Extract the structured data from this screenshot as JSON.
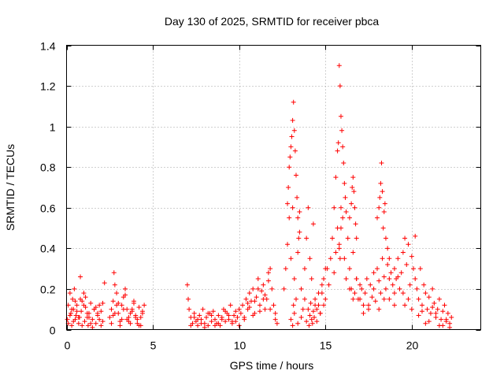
{
  "chart_data": {
    "type": "scatter",
    "title": "Day 130 of 2025, SRMTID for receiver pbca",
    "xlabel": "GPS time / hours",
    "ylabel": "SRMTID / TECUs",
    "xlim": [
      0,
      24
    ],
    "ylim": [
      0,
      1.4
    ],
    "xticks": [
      0,
      5,
      10,
      15,
      20
    ],
    "yticks": [
      0,
      0.2,
      0.4,
      0.6,
      0.8,
      1,
      1.2,
      1.4
    ],
    "ytick_labels": [
      "0",
      "0.2",
      "0.4",
      "0.6",
      "0.8",
      "1",
      "1.2",
      "1.4"
    ],
    "grid": true,
    "marker": "+",
    "color": "#ff0000",
    "series": [
      {
        "name": "pbca",
        "x": [
          0.05,
          0.1,
          0.2,
          0.25,
          0.3,
          0.35,
          0.4,
          0.45,
          0.5,
          0.55,
          0.6,
          0.7,
          0.75,
          0.8,
          0.85,
          0.9,
          1.0,
          1.05,
          1.1,
          1.2,
          1.25,
          1.3,
          1.4,
          1.5,
          1.6,
          1.7,
          1.8,
          1.9,
          2.0,
          2.1,
          2.2,
          0.1,
          0.3,
          0.5,
          0.7,
          0.9,
          1.1,
          1.3,
          1.5,
          1.7,
          1.9,
          2.1,
          0.2,
          0.4,
          0.6,
          0.8,
          1.0,
          1.2,
          1.4,
          1.6,
          1.8,
          2.0,
          2.5,
          2.6,
          2.7,
          2.75,
          2.8,
          2.9,
          3.0,
          3.1,
          3.2,
          3.3,
          3.4,
          3.5,
          3.6,
          3.7,
          3.8,
          3.9,
          4.0,
          4.1,
          4.2,
          4.3,
          4.4,
          4.5,
          2.6,
          2.8,
          3.0,
          3.2,
          3.4,
          3.6,
          3.8,
          4.0,
          4.2,
          4.4,
          2.7,
          2.9,
          3.1,
          3.3,
          3.5,
          3.7,
          3.9,
          4.1,
          4.3,
          7.0,
          7.05,
          7.1,
          7.2,
          7.3,
          7.4,
          7.5,
          7.6,
          7.7,
          7.8,
          7.9,
          8.0,
          8.1,
          8.2,
          8.3,
          8.4,
          8.5,
          8.6,
          8.7,
          8.8,
          8.9,
          9.0,
          9.1,
          9.2,
          9.3,
          9.4,
          9.5,
          9.6,
          9.7,
          9.8,
          9.9,
          10.0,
          7.2,
          7.6,
          8.0,
          8.4,
          8.8,
          9.2,
          9.6,
          10.0,
          7.4,
          7.8,
          8.2,
          8.6,
          9.0,
          9.4,
          9.8,
          10.1,
          10.2,
          10.3,
          10.4,
          10.5,
          10.6,
          10.7,
          10.8,
          10.9,
          11.0,
          11.1,
          11.2,
          11.3,
          11.4,
          11.5,
          11.6,
          11.7,
          11.8,
          11.9,
          12.0,
          12.1,
          12.2,
          10.3,
          10.6,
          10.9,
          11.2,
          11.5,
          11.8,
          12.1,
          10.5,
          10.8,
          11.1,
          11.4,
          11.7,
          12.0,
          12.6,
          12.7,
          12.8,
          12.9,
          13.0,
          13.1,
          13.2,
          13.3,
          13.4,
          13.5,
          13.6,
          13.7,
          13.8,
          13.9,
          14.0,
          14.1,
          14.2,
          14.3,
          14.4,
          14.5,
          14.6,
          14.7,
          14.8,
          14.9,
          15.0,
          12.8,
          12.85,
          12.9,
          12.95,
          13.0,
          13.05,
          13.1,
          13.15,
          13.2,
          13.25,
          13.3,
          13.35,
          13.4,
          13.45,
          13.5,
          13.0,
          13.1,
          13.15,
          13.2,
          13.4,
          13.6,
          13.8,
          13.9,
          14.0,
          14.05,
          14.1,
          14.15,
          14.2,
          14.25,
          14.3,
          14.35,
          14.4,
          14.5,
          14.6,
          14.7,
          14.8,
          14.9,
          15.0,
          15.1,
          15.2,
          15.3,
          15.4,
          15.5,
          15.6,
          15.7,
          15.8,
          15.9,
          16.0,
          16.1,
          16.2,
          16.3,
          16.4,
          16.5,
          16.6,
          16.7,
          16.8,
          16.9,
          17.0,
          15.5,
          15.6,
          15.7,
          15.75,
          15.8,
          15.85,
          15.9,
          15.95,
          16.0,
          16.05,
          16.1,
          16.15,
          16.2,
          15.8,
          15.85,
          15.9,
          16.4,
          16.5,
          16.55,
          16.6,
          16.65,
          16.7,
          16.75,
          16.8,
          16.4,
          16.6,
          16.8,
          17.0,
          17.1,
          17.2,
          17.3,
          17.4,
          17.5,
          17.6,
          17.7,
          17.8,
          17.9,
          18.0,
          18.1,
          18.2,
          18.3,
          18.4,
          18.5,
          18.6,
          18.7,
          18.8,
          18.9,
          19.0,
          17.2,
          17.5,
          17.8,
          18.1,
          18.4,
          18.7,
          19.0,
          18.0,
          18.1,
          18.15,
          18.2,
          18.25,
          18.3,
          18.35,
          18.4,
          18.45,
          18.5,
          18.6,
          18.7,
          19.0,
          19.1,
          19.2,
          19.3,
          19.4,
          19.5,
          19.6,
          19.7,
          19.8,
          19.9,
          20.0,
          20.1,
          20.2,
          19.5,
          19.8,
          20.0,
          19.2,
          19.6,
          20.2,
          20.3,
          20.4,
          20.5,
          20.6,
          20.7,
          20.8,
          20.9,
          21.0,
          21.1,
          21.2,
          21.3,
          21.4,
          21.5,
          21.6,
          21.7,
          21.8,
          21.9,
          22.0,
          22.1,
          22.2,
          22.3,
          20.4,
          20.8,
          21.2,
          21.6,
          22.0,
          20.6,
          21.0,
          21.4,
          21.8,
          22.2
        ],
        "y": [
          0.05,
          0.12,
          0.18,
          0.08,
          0.02,
          0.15,
          0.1,
          0.2,
          0.05,
          0.07,
          0.12,
          0.03,
          0.06,
          0.26,
          0.09,
          0.14,
          0.18,
          0.04,
          0.11,
          0.08,
          0.02,
          0.06,
          0.13,
          0.05,
          0.1,
          0.03,
          0.07,
          0.12,
          0.09,
          0.04,
          0.23,
          0.03,
          0.1,
          0.14,
          0.06,
          0.02,
          0.16,
          0.08,
          0.01,
          0.11,
          0.05,
          0.13,
          0.07,
          0.04,
          0.09,
          0.15,
          0.12,
          0.06,
          0.03,
          0.1,
          0.08,
          0.02,
          0.06,
          0.1,
          0.14,
          0.28,
          0.22,
          0.18,
          0.08,
          0.04,
          0.12,
          0.16,
          0.2,
          0.1,
          0.06,
          0.03,
          0.09,
          0.13,
          0.07,
          0.05,
          0.11,
          0.02,
          0.08,
          0.12,
          0.03,
          0.08,
          0.13,
          0.05,
          0.17,
          0.04,
          0.1,
          0.06,
          0.02,
          0.09,
          0.07,
          0.12,
          0.02,
          0.1,
          0.05,
          0.08,
          0.14,
          0.03,
          0.06,
          0.22,
          0.15,
          0.1,
          0.06,
          0.03,
          0.08,
          0.04,
          0.02,
          0.07,
          0.05,
          0.1,
          0.03,
          0.06,
          0.02,
          0.08,
          0.04,
          0.09,
          0.05,
          0.03,
          0.07,
          0.02,
          0.06,
          0.1,
          0.04,
          0.08,
          0.05,
          0.12,
          0.03,
          0.07,
          0.09,
          0.06,
          0.1,
          0.02,
          0.05,
          0.01,
          0.07,
          0.03,
          0.09,
          0.04,
          0.02,
          0.06,
          0.03,
          0.08,
          0.02,
          0.05,
          0.07,
          0.04,
          0.08,
          0.12,
          0.05,
          0.15,
          0.1,
          0.18,
          0.14,
          0.2,
          0.08,
          0.16,
          0.25,
          0.12,
          0.19,
          0.22,
          0.1,
          0.15,
          0.28,
          0.3,
          0.2,
          0.12,
          0.08,
          0.03,
          0.06,
          0.11,
          0.14,
          0.09,
          0.17,
          0.1,
          0.05,
          0.13,
          0.07,
          0.2,
          0.15,
          0.24,
          0.12,
          0.2,
          0.3,
          0.42,
          0.55,
          0.35,
          0.6,
          0.25,
          0.15,
          0.38,
          0.48,
          0.2,
          0.1,
          0.3,
          0.45,
          0.6,
          0.35,
          0.25,
          0.52,
          0.15,
          0.1,
          0.18,
          0.08,
          0.22,
          0.12,
          0.3,
          0.62,
          0.7,
          0.8,
          0.85,
          0.9,
          0.95,
          1.03,
          1.12,
          0.98,
          0.88,
          0.76,
          0.65,
          0.55,
          0.45,
          0.58,
          0.05,
          0.02,
          0.12,
          0.08,
          0.03,
          0.06,
          0.15,
          0.04,
          0.1,
          0.02,
          0.07,
          0.13,
          0.05,
          0.03,
          0.09,
          0.06,
          0.12,
          0.04,
          0.12,
          0.08,
          0.18,
          0.25,
          0.15,
          0.3,
          0.22,
          0.35,
          0.45,
          0.28,
          0.38,
          0.5,
          0.42,
          0.6,
          0.55,
          0.35,
          0.25,
          0.45,
          0.3,
          0.2,
          0.38,
          0.18,
          0.25,
          0.15,
          0.22,
          0.6,
          0.75,
          0.88,
          0.92,
          1.3,
          1.2,
          1.05,
          0.98,
          0.9,
          0.82,
          0.72,
          0.65,
          0.58,
          0.4,
          0.35,
          0.5,
          0.55,
          0.62,
          0.7,
          0.75,
          0.68,
          0.6,
          0.52,
          0.45,
          0.2,
          0.15,
          0.25,
          0.15,
          0.2,
          0.12,
          0.18,
          0.25,
          0.1,
          0.22,
          0.16,
          0.28,
          0.14,
          0.3,
          0.24,
          0.18,
          0.35,
          0.26,
          0.2,
          0.32,
          0.15,
          0.28,
          0.22,
          0.18,
          0.08,
          0.12,
          0.2,
          0.1,
          0.15,
          0.25,
          0.12,
          0.55,
          0.6,
          0.65,
          0.72,
          0.82,
          0.68,
          0.5,
          0.58,
          0.62,
          0.45,
          0.4,
          0.35,
          0.3,
          0.25,
          0.35,
          0.2,
          0.28,
          0.38,
          0.45,
          0.32,
          0.42,
          0.22,
          0.36,
          0.3,
          0.46,
          0.18,
          0.15,
          0.1,
          0.26,
          0.12,
          0.25,
          0.2,
          0.15,
          0.3,
          0.12,
          0.22,
          0.18,
          0.1,
          0.16,
          0.08,
          0.2,
          0.13,
          0.06,
          0.1,
          0.15,
          0.05,
          0.09,
          0.12,
          0.04,
          0.08,
          0.03,
          0.06,
          0.07,
          0.03,
          0.11,
          0.02,
          0.05,
          0.09,
          0.04,
          0.08,
          0.02,
          0.01
        ]
      }
    ]
  }
}
